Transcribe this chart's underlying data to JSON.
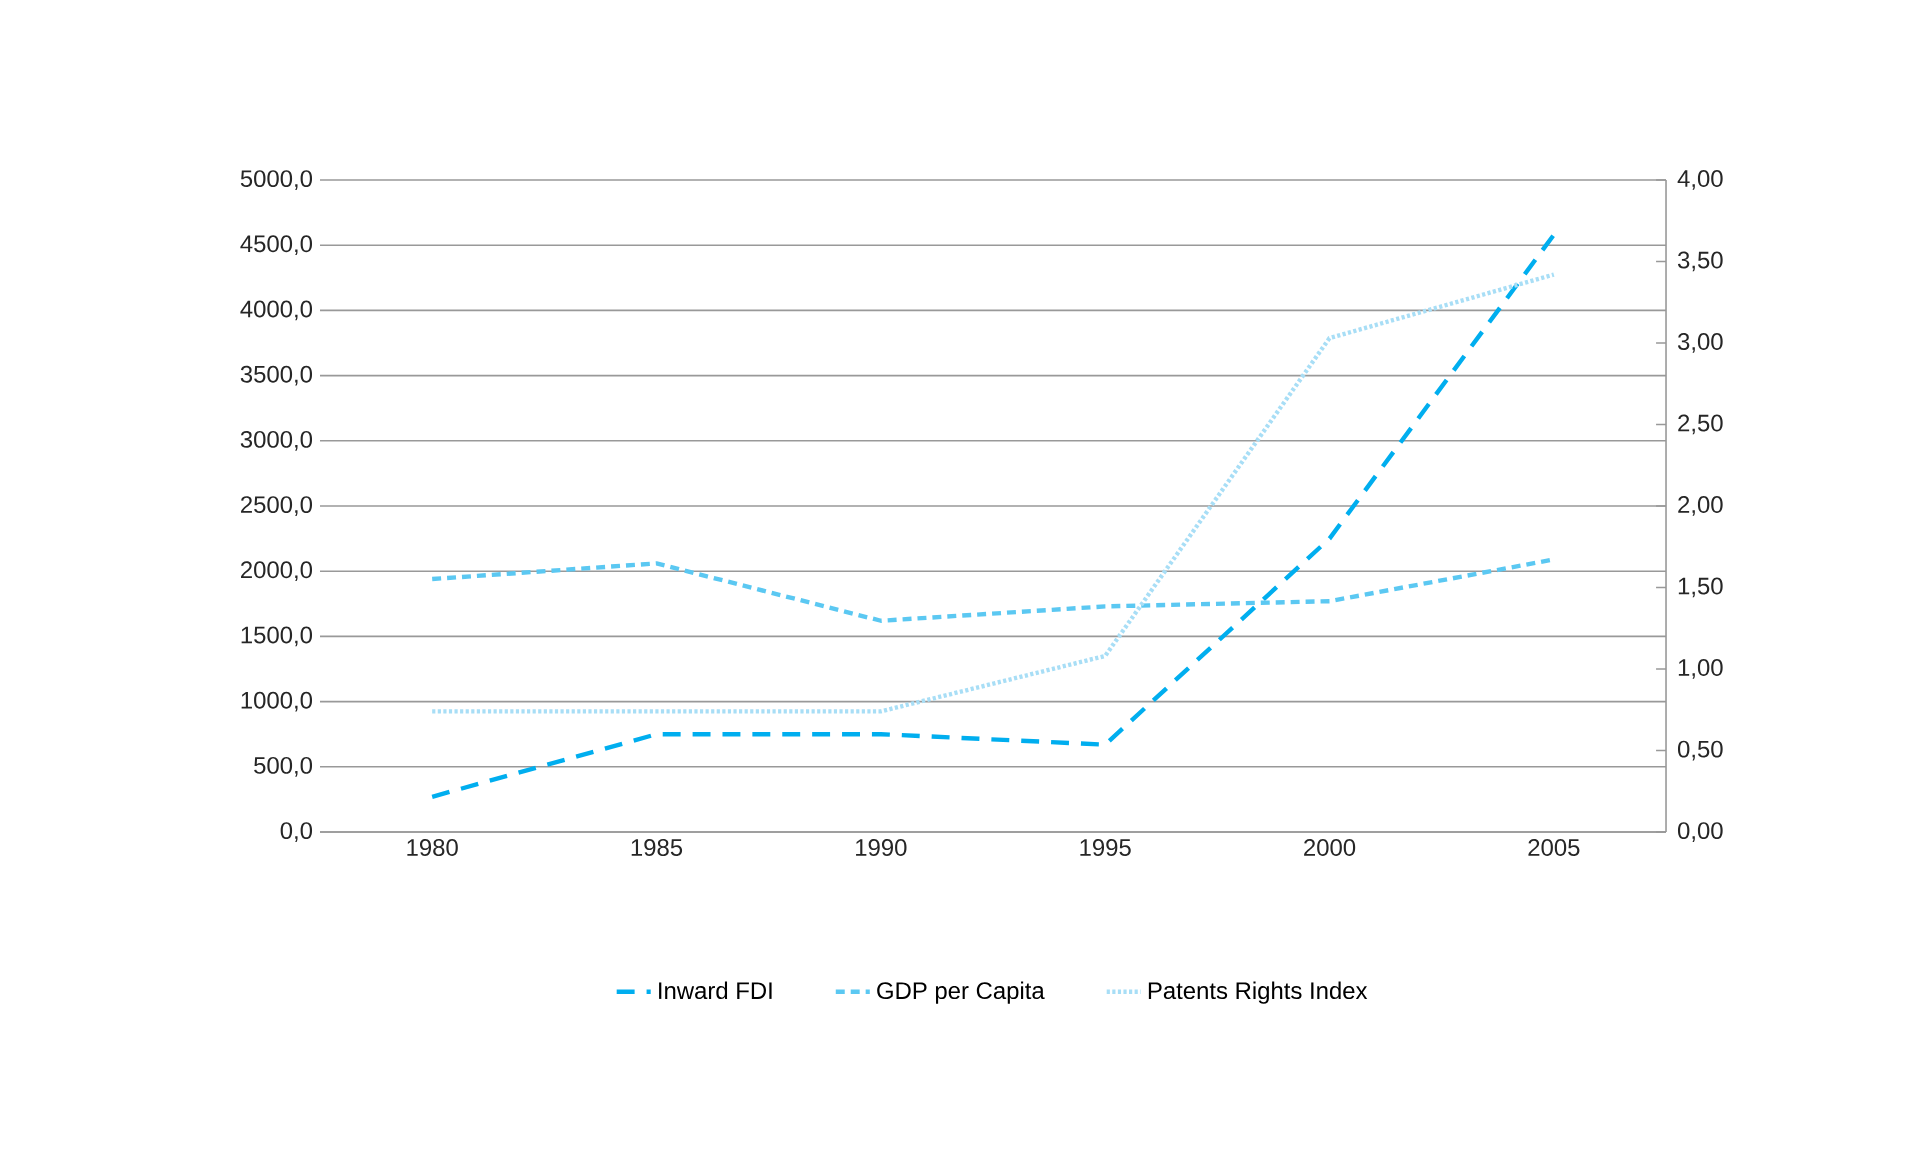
{
  "chart_data": {
    "type": "line",
    "categories": [
      "1980",
      "1985",
      "1990",
      "1995",
      "2000",
      "2005"
    ],
    "series": [
      {
        "name": "Inward FDI",
        "color": "#00aeef",
        "line_style": "dashed",
        "values": [
          270,
          750,
          750,
          670,
          2250,
          4580
        ]
      },
      {
        "name": "GDP per Capita",
        "color": "#5bc8f2",
        "line_style": "dashed",
        "values": [
          1940,
          2060,
          1620,
          1730,
          1770,
          2090
        ]
      },
      {
        "name": "Patents Rights Index",
        "color": "#a8def6",
        "line_style": "dotted",
        "axis": "y2",
        "values": [
          0.74,
          0.74,
          0.74,
          1.08,
          3.03,
          3.42
        ]
      }
    ],
    "ylim": [
      0,
      5000
    ],
    "yticks": [
      {
        "value": 0,
        "label": "0,0"
      },
      {
        "value": 500,
        "label": "500,0"
      },
      {
        "value": 1000,
        "label": "1000,0"
      },
      {
        "value": 1500,
        "label": "1500,0"
      },
      {
        "value": 2000,
        "label": "2000,0"
      },
      {
        "value": 2500,
        "label": "2500,0"
      },
      {
        "value": 3000,
        "label": "3000,0"
      },
      {
        "value": 3500,
        "label": "3500,0"
      },
      {
        "value": 4000,
        "label": "4000,0"
      },
      {
        "value": 4500,
        "label": "4500,0"
      },
      {
        "value": 5000,
        "label": "5000,0"
      }
    ],
    "y2lim": [
      0,
      4
    ],
    "y2ticks": [
      {
        "value": 0,
        "label": "0,00"
      },
      {
        "value": 0.5,
        "label": "0,50"
      },
      {
        "value": 1,
        "label": "1,00"
      },
      {
        "value": 1.5,
        "label": "1,50"
      },
      {
        "value": 2,
        "label": "2,00"
      },
      {
        "value": 2.5,
        "label": "2,50"
      },
      {
        "value": 3,
        "label": "3,00"
      },
      {
        "value": 3.5,
        "label": "3,50"
      },
      {
        "value": 4,
        "label": "4,00"
      }
    ],
    "grid": "y",
    "legend": "bottom",
    "marker": "none"
  }
}
